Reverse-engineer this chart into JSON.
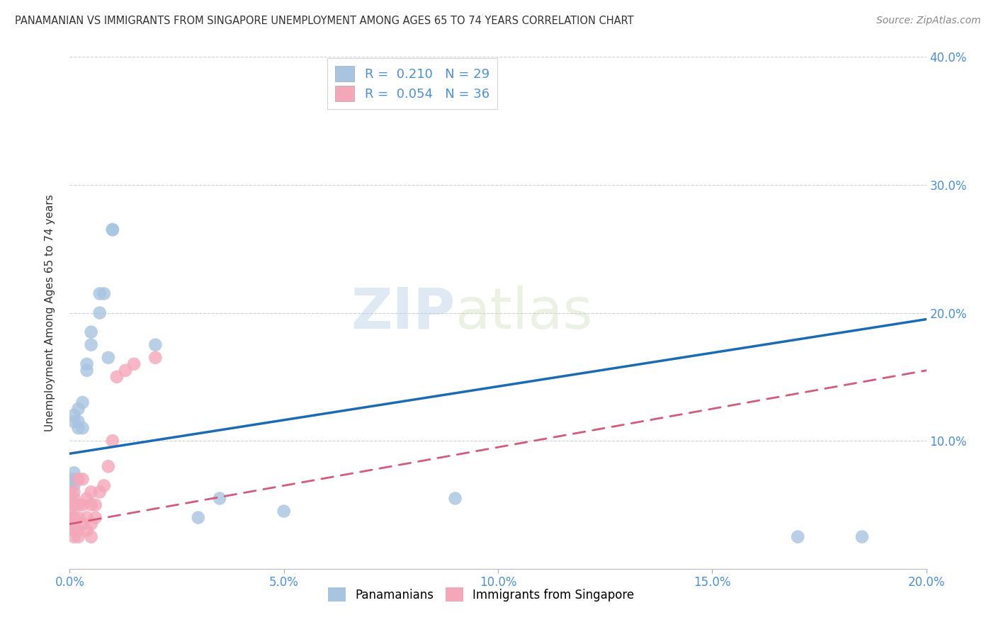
{
  "title": "PANAMANIAN VS IMMIGRANTS FROM SINGAPORE UNEMPLOYMENT AMONG AGES 65 TO 74 YEARS CORRELATION CHART",
  "source": "Source: ZipAtlas.com",
  "ylabel": "Unemployment Among Ages 65 to 74 years",
  "watermark": "ZIPatlas",
  "blue_R": 0.21,
  "blue_N": 29,
  "pink_R": 0.054,
  "pink_N": 36,
  "xlim": [
    0.0,
    0.2
  ],
  "ylim": [
    0.0,
    0.4
  ],
  "xticks": [
    0.0,
    0.05,
    0.1,
    0.15,
    0.2
  ],
  "yticks": [
    0.0,
    0.1,
    0.2,
    0.3,
    0.4
  ],
  "ytick_labels_right": [
    "",
    "10.0%",
    "20.0%",
    "30.0%",
    "40.0%"
  ],
  "xtick_labels": [
    "0.0%",
    "5.0%",
    "10.0%",
    "15.0%",
    "20.0%"
  ],
  "blue_scatter_x": [
    0.0,
    0.0,
    0.001,
    0.001,
    0.001,
    0.001,
    0.001,
    0.002,
    0.002,
    0.002,
    0.003,
    0.003,
    0.004,
    0.004,
    0.005,
    0.005,
    0.007,
    0.007,
    0.008,
    0.009,
    0.01,
    0.01,
    0.02,
    0.03,
    0.035,
    0.05,
    0.09,
    0.17,
    0.185
  ],
  "blue_scatter_y": [
    0.065,
    0.07,
    0.065,
    0.07,
    0.075,
    0.115,
    0.12,
    0.11,
    0.115,
    0.125,
    0.11,
    0.13,
    0.155,
    0.16,
    0.175,
    0.185,
    0.2,
    0.215,
    0.215,
    0.165,
    0.265,
    0.265,
    0.175,
    0.04,
    0.055,
    0.045,
    0.055,
    0.025,
    0.025
  ],
  "pink_scatter_x": [
    0.0,
    0.0,
    0.0,
    0.0,
    0.0,
    0.001,
    0.001,
    0.001,
    0.001,
    0.001,
    0.001,
    0.002,
    0.002,
    0.002,
    0.002,
    0.002,
    0.003,
    0.003,
    0.003,
    0.004,
    0.004,
    0.004,
    0.005,
    0.005,
    0.005,
    0.005,
    0.006,
    0.006,
    0.007,
    0.008,
    0.009,
    0.01,
    0.011,
    0.013,
    0.015,
    0.02
  ],
  "pink_scatter_y": [
    0.035,
    0.04,
    0.045,
    0.055,
    0.06,
    0.025,
    0.03,
    0.04,
    0.05,
    0.055,
    0.06,
    0.025,
    0.03,
    0.04,
    0.05,
    0.07,
    0.035,
    0.05,
    0.07,
    0.03,
    0.04,
    0.055,
    0.025,
    0.035,
    0.05,
    0.06,
    0.04,
    0.05,
    0.06,
    0.065,
    0.08,
    0.1,
    0.15,
    0.155,
    0.16,
    0.165
  ],
  "blue_line_y_start": 0.09,
  "blue_line_y_end": 0.195,
  "pink_line_y_start": 0.035,
  "pink_line_y_end": 0.155,
  "blue_color": "#a8c4e0",
  "blue_line_color": "#1a6bb5",
  "pink_color": "#f4a7b9",
  "pink_line_color": "#d45a7a",
  "background_color": "#ffffff",
  "grid_color": "#d0d0d0",
  "axis_color": "#4a90d9",
  "title_color": "#333333",
  "legend_color": "#4a90d9"
}
